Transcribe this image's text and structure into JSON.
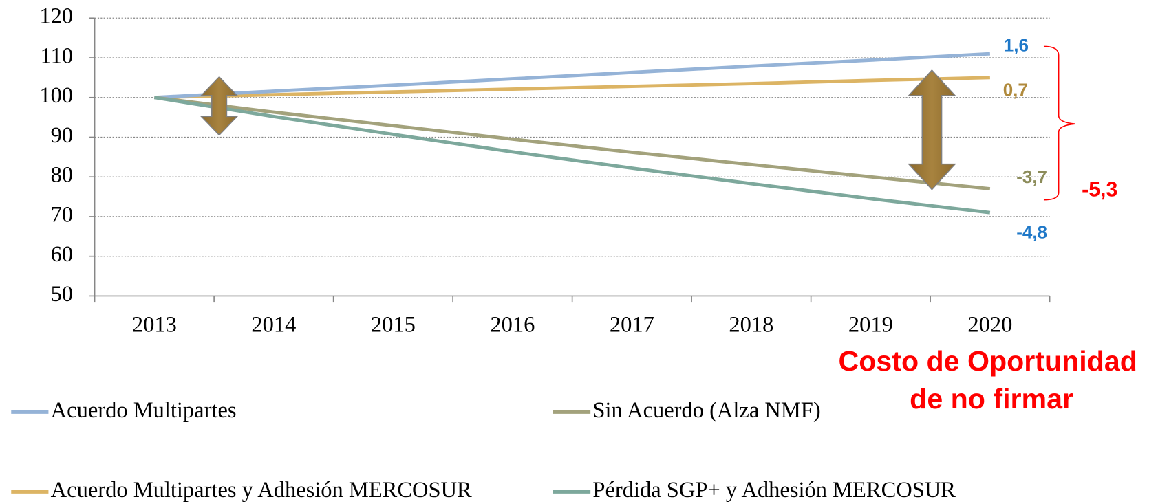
{
  "chart_data": {
    "type": "line",
    "categories": [
      "2013",
      "2014",
      "2015",
      "2016",
      "2017",
      "2018",
      "2019",
      "2020"
    ],
    "series": [
      {
        "name": "Acuerdo Multipartes",
        "color": "#95b3d7",
        "values": [
          100,
          101.6,
          103.1,
          104.7,
          106.3,
          107.9,
          109.4,
          111
        ]
      },
      {
        "name": "Sin Acuerdo (Alza NMF)",
        "color": "#a3a27c",
        "values": [
          100,
          96.3,
          92.9,
          89.5,
          86.2,
          83.1,
          80,
          77
        ]
      },
      {
        "name": "Acuerdo Multipartes y Adhesión MERCOSUR",
        "color": "#dcb464",
        "values": [
          100,
          100.7,
          101.4,
          102.1,
          102.8,
          103.5,
          104.3,
          105
        ]
      },
      {
        "name": "Pérdida SGP+ y Adhesión MERCOSUR",
        "color": "#7da89c",
        "values": [
          100,
          95.2,
          90.7,
          86.3,
          82.2,
          78.3,
          74.5,
          71
        ]
      }
    ],
    "ylim": [
      50,
      120
    ],
    "yticks": [
      50,
      60,
      70,
      80,
      90,
      100,
      110,
      120
    ],
    "grid": true,
    "legend": "bottom",
    "annotations": [
      {
        "text": "1,6",
        "color": "#1f78c8"
      },
      {
        "text": "0,7",
        "color": "#b08a3c"
      },
      {
        "text": "-3,7",
        "color": "#8c8c5a"
      },
      {
        "text": "-4,8",
        "color": "#1f78c8"
      },
      {
        "text": "-5,3",
        "color": "#ff0000"
      },
      {
        "text": "Costo de Oportunidad",
        "color": "#ff0000"
      },
      {
        "text": "de no firmar",
        "color": "#ff0000"
      }
    ]
  }
}
